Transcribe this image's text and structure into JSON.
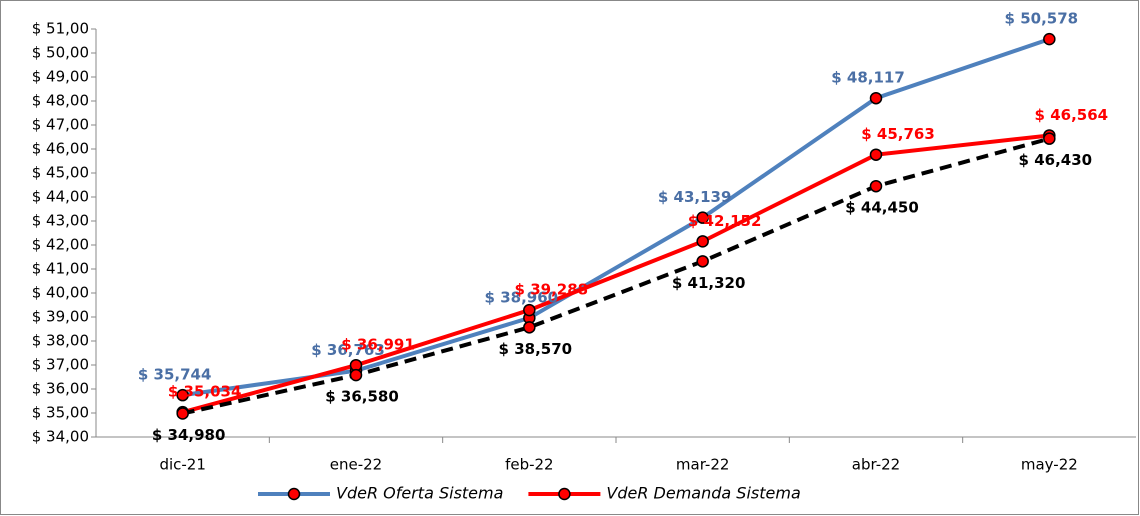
{
  "chart_data": {
    "type": "line",
    "categories": [
      "dic-21",
      "ene-22",
      "feb-22",
      "mar-22",
      "abr-22",
      "may-22"
    ],
    "series": [
      {
        "name": "VdeR Oferta Sistema",
        "color": "#4f81bd",
        "label_color": "#4a6fa5",
        "dash": false,
        "values": [
          35.744,
          36.763,
          38.96,
          43.139,
          48.117,
          50.578
        ],
        "value_labels": [
          "$ 35,744",
          "$ 36,763",
          "$ 38,960",
          "$ 43,139",
          "$ 48,117",
          "$ 50,578"
        ]
      },
      {
        "name": "VdeR Demanda Sistema",
        "color": "#ff0000",
        "label_color": "#ff0000",
        "dash": false,
        "values": [
          35.034,
          36.991,
          39.288,
          42.152,
          45.763,
          46.564
        ],
        "value_labels": [
          "$ 35,034",
          "$ 36,991",
          "$ 39,288",
          "$ 42,152",
          "$ 45,763",
          "$ 46,564"
        ]
      },
      {
        "color": "#000000",
        "label_color": "#000000",
        "dash": true,
        "values": [
          34.98,
          36.58,
          38.57,
          41.32,
          44.45,
          46.43
        ],
        "value_labels": [
          "$ 34,980",
          "$ 36,580",
          "$ 38,570",
          "$ 41,320",
          "$ 44,450",
          "$ 46,430"
        ]
      }
    ],
    "marker_color": "#ff0000",
    "ylim": [
      34,
      51
    ],
    "yticks": [
      {
        "value": 34,
        "label": "$ 34,00"
      },
      {
        "value": 35,
        "label": "$ 35,00"
      },
      {
        "value": 36,
        "label": "$ 36,00"
      },
      {
        "value": 37,
        "label": "$ 37,00"
      },
      {
        "value": 38,
        "label": "$ 38,00"
      },
      {
        "value": 39,
        "label": "$ 39,00"
      },
      {
        "value": 40,
        "label": "$ 40,00"
      },
      {
        "value": 41,
        "label": "$ 41,00"
      },
      {
        "value": 42,
        "label": "$ 42,00"
      },
      {
        "value": 43,
        "label": "$ 43,00"
      },
      {
        "value": 44,
        "label": "$ 44,00"
      },
      {
        "value": 45,
        "label": "$ 45,00"
      },
      {
        "value": 46,
        "label": "$ 46,00"
      },
      {
        "value": 47,
        "label": "$ 47,00"
      },
      {
        "value": 48,
        "label": "$ 48,00"
      },
      {
        "value": 49,
        "label": "$ 49,00"
      },
      {
        "value": 50,
        "label": "$ 50,00"
      },
      {
        "value": 51,
        "label": "$ 51,00"
      }
    ],
    "grid": false
  }
}
